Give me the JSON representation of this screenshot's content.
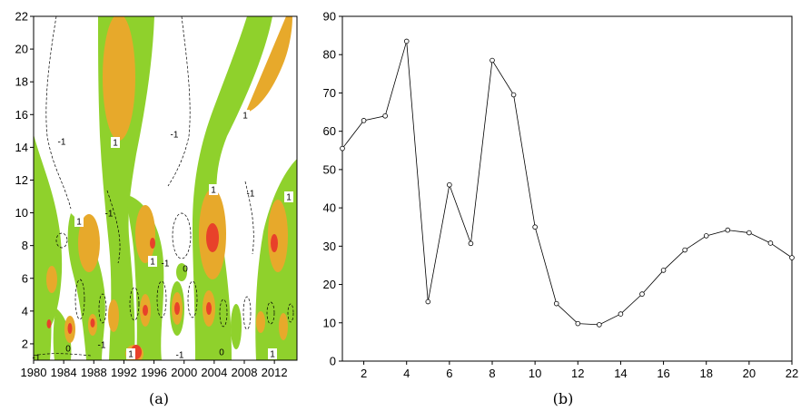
{
  "chart_data": [
    {
      "type": "heatmap",
      "caption": "(a)",
      "x_ticks": [
        "1980",
        "1984",
        "1988",
        "1992",
        "1996",
        "2000",
        "2004",
        "2008",
        "2012"
      ],
      "y_ticks": [
        "2",
        "4",
        "6",
        "8",
        "10",
        "12",
        "14",
        "16",
        "18",
        "20",
        "22"
      ],
      "xlim": [
        1980,
        2015
      ],
      "ylim": [
        1,
        22
      ],
      "contour_labels": [
        "1",
        "1",
        "1",
        "1",
        "1",
        "1",
        "1",
        "1",
        "-1",
        "-1",
        "-1",
        "-1",
        "-1",
        "-1",
        "-1",
        "-1",
        "0",
        "0",
        "0"
      ],
      "colors": {
        "green": "#8fd12c",
        "orange": "#e7a92b",
        "red": "#e8412a",
        "background": "#ffffff"
      }
    },
    {
      "type": "line",
      "caption": "(b)",
      "x": [
        1,
        2,
        3,
        4,
        5,
        6,
        7,
        8,
        9,
        10,
        11,
        12,
        13,
        14,
        15,
        16,
        17,
        18,
        19,
        20,
        21,
        22
      ],
      "values": [
        55.5,
        62.8,
        64.0,
        83.5,
        15.5,
        46.0,
        30.7,
        78.5,
        69.5,
        35.0,
        15.0,
        9.8,
        9.5,
        12.3,
        17.5,
        23.7,
        29.0,
        32.7,
        34.2,
        33.5,
        30.8,
        27.0
      ],
      "x_ticks": [
        "2",
        "4",
        "6",
        "8",
        "10",
        "12",
        "14",
        "16",
        "18",
        "20",
        "22"
      ],
      "y_ticks": [
        "0",
        "10",
        "20",
        "30",
        "40",
        "50",
        "60",
        "70",
        "80",
        "90"
      ],
      "xlim": [
        1,
        22
      ],
      "ylim": [
        0,
        90
      ],
      "grid": false
    }
  ]
}
